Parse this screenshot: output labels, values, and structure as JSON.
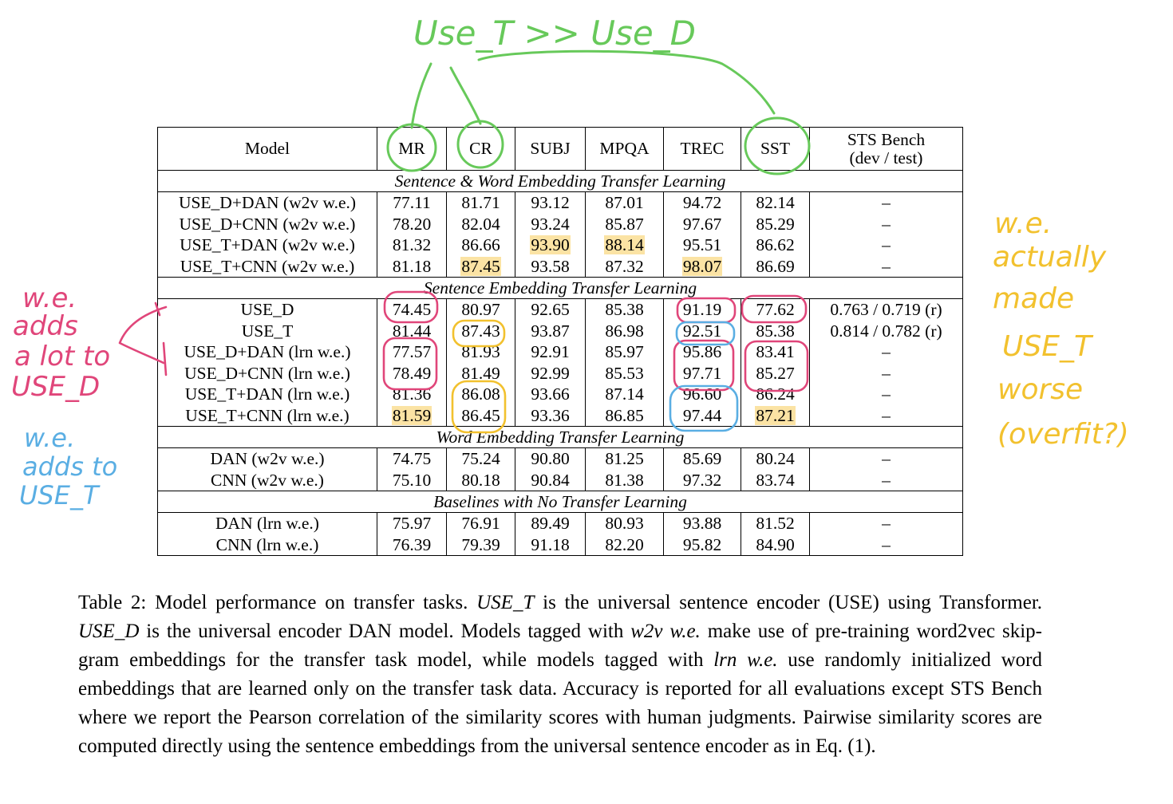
{
  "table": {
    "headers": [
      "Model",
      "MR",
      "CR",
      "SUBJ",
      "MPQA",
      "TREC",
      "SST",
      "STS Bench",
      "(dev / test)"
    ],
    "sections": [
      {
        "title": "Sentence & Word Embedding Transfer Learning",
        "rows": [
          {
            "model": "USE_D+DAN (w2v w.e.)",
            "cells": [
              "77.11",
              "81.71",
              "93.12",
              "87.01",
              "94.72",
              "82.14",
              "–"
            ]
          },
          {
            "model": "USE_D+CNN (w2v w.e.)",
            "cells": [
              "78.20",
              "82.04",
              "93.24",
              "85.87",
              "97.67",
              "85.29",
              "–"
            ]
          },
          {
            "model": "USE_T+DAN (w2v w.e.)",
            "cells": [
              "81.32",
              "86.66",
              "93.90",
              "88.14",
              "95.51",
              "86.62",
              "–"
            ]
          },
          {
            "model": "USE_T+CNN (w2v w.e.)",
            "cells": [
              "81.18",
              "87.45",
              "93.58",
              "87.32",
              "98.07",
              "86.69",
              "–"
            ]
          }
        ]
      },
      {
        "title": "Sentence Embedding Transfer Learning",
        "rows": [
          {
            "model": "USE_D",
            "cells": [
              "74.45",
              "80.97",
              "92.65",
              "85.38",
              "91.19",
              "77.62",
              "0.763 / 0.719 (r)"
            ]
          },
          {
            "model": "USE_T",
            "cells": [
              "81.44",
              "87.43",
              "93.87",
              "86.98",
              "92.51",
              "85.38",
              "0.814 / 0.782 (r)"
            ]
          },
          {
            "model": "USE_D+DAN (lrn w.e.)",
            "cells": [
              "77.57",
              "81.93",
              "92.91",
              "85.97",
              "95.86",
              "83.41",
              "–"
            ]
          },
          {
            "model": "USE_D+CNN (lrn w.e.)",
            "cells": [
              "78.49",
              "81.49",
              "92.99",
              "85.53",
              "97.71",
              "85.27",
              "–"
            ]
          },
          {
            "model": "USE_T+DAN (lrn w.e.)",
            "cells": [
              "81.36",
              "86.08",
              "93.66",
              "87.14",
              "96.60",
              "86.24",
              "–"
            ]
          },
          {
            "model": "USE_T+CNN (lrn w.e.)",
            "cells": [
              "81.59",
              "86.45",
              "93.36",
              "86.85",
              "97.44",
              "87.21",
              "–"
            ]
          }
        ]
      },
      {
        "title": "Word Embedding Transfer Learning",
        "rows": [
          {
            "model": "DAN (w2v w.e.)",
            "cells": [
              "74.75",
              "75.24",
              "90.80",
              "81.25",
              "85.69",
              "80.24",
              "–"
            ]
          },
          {
            "model": "CNN (w2v w.e.)",
            "cells": [
              "75.10",
              "80.18",
              "90.84",
              "81.38",
              "97.32",
              "83.74",
              "–"
            ]
          }
        ]
      },
      {
        "title": "Baselines with No Transfer Learning",
        "rows": [
          {
            "model": "DAN (lrn w.e.)",
            "cells": [
              "75.97",
              "76.91",
              "89.49",
              "80.93",
              "93.88",
              "81.52",
              "–"
            ]
          },
          {
            "model": "CNN (lrn w.e.)",
            "cells": [
              "76.39",
              "79.39",
              "91.18",
              "82.20",
              "95.82",
              "84.90",
              "–"
            ]
          }
        ]
      }
    ],
    "highlight_color": "#fbe3a4",
    "highlighted_cells": [
      {
        "section": 0,
        "row": 2,
        "col": 2
      },
      {
        "section": 0,
        "row": 2,
        "col": 3
      },
      {
        "section": 0,
        "row": 3,
        "col": 1
      },
      {
        "section": 0,
        "row": 3,
        "col": 4
      },
      {
        "section": 1,
        "row": 5,
        "col": 0
      },
      {
        "section": 1,
        "row": 5,
        "col": 5
      }
    ]
  },
  "caption": {
    "lead": "Table 2: Model performance on transfer tasks. ",
    "term_use_t": "USE_T",
    "part1": " is the universal sentence encoder (USE) using Transformer. ",
    "term_use_d": "USE_D",
    "part2": " is the universal encoder DAN model. Models tagged with ",
    "term_w2v": "w2v w.e.",
    "part3": " make use of pre-training word2vec skip-gram embeddings for the transfer task model, while models tagged with ",
    "term_lrn": "lrn w.e.",
    "part4": " use randomly initialized word embeddings that are learned only on the transfer task data. Accuracy is reported for all evaluations except STS Bench where we report the Pearson correlation of the similarity scores with human judgments. Pairwise similarity scores are computed directly using the sentence embeddings from the universal sentence encoder as in Eq. (1)."
  },
  "annotations": {
    "top": "Use_T >> Use_D",
    "left_pink": [
      "w.e.",
      "adds",
      "a lot to",
      "USE_D"
    ],
    "left_blue": [
      "w.e.",
      "adds to",
      "USE_T"
    ],
    "right_yellow": [
      "w.e.",
      "actually",
      "made",
      "USE_T",
      "worse",
      "(overfit?)"
    ],
    "colors": {
      "green": "#67c95a",
      "pink": "#e0467a",
      "blue": "#5aaee3",
      "yellow": "#f2c12e"
    }
  }
}
